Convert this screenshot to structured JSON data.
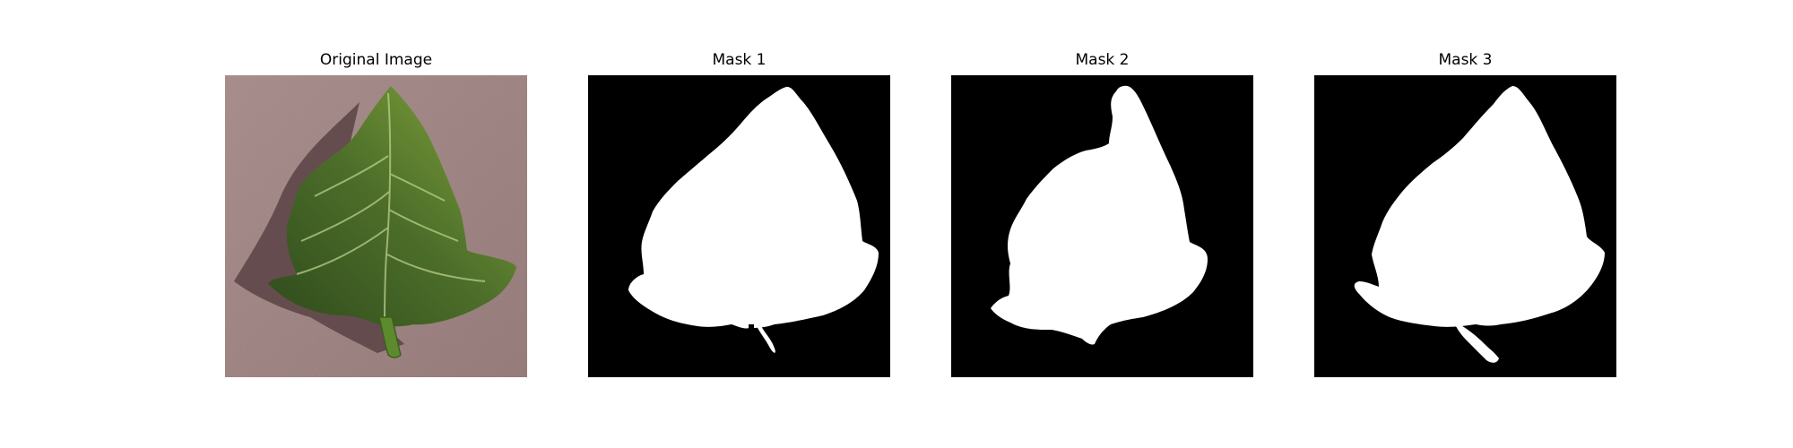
{
  "figure": {
    "panels": [
      {
        "title": "Original Image"
      },
      {
        "title": "Mask 1"
      },
      {
        "title": "Mask 2"
      },
      {
        "title": "Mask 3"
      }
    ]
  },
  "colors": {
    "background": "#ffffff",
    "mask_background": "#000000",
    "mask_foreground": "#ffffff",
    "surface": "#9c7f7d",
    "leaf_dark": "#3c5a22",
    "leaf_light": "#7ea03a",
    "shadow": "#5e4648"
  }
}
